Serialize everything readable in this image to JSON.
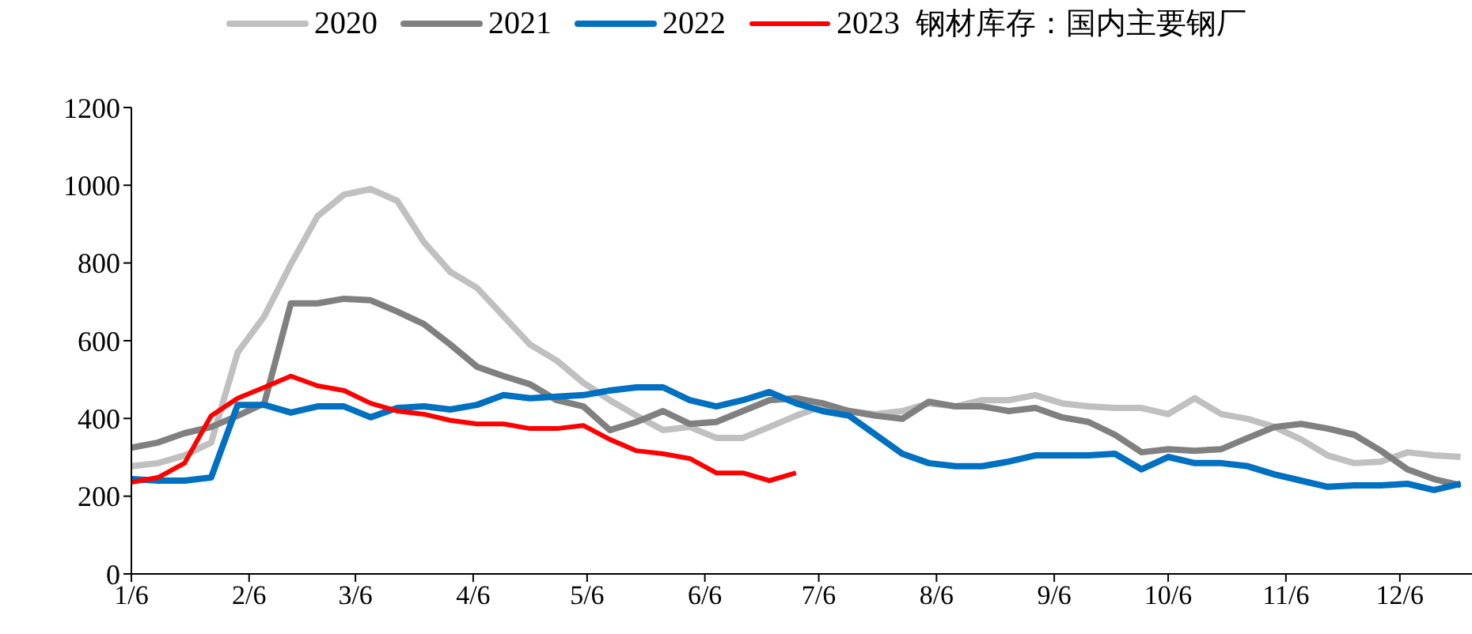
{
  "chart_data": {
    "type": "line",
    "title": "钢材库存：国内主要钢厂",
    "x": [
      "--01-06",
      "--01-13",
      "--01-20",
      "--01-27",
      "--02-03",
      "--02-10",
      "--02-17",
      "--02-24",
      "--03-03",
      "--03-10",
      "--03-17",
      "--03-24",
      "--03-31",
      "--04-07",
      "--04-14",
      "--04-21",
      "--04-28",
      "--05-05",
      "--05-12",
      "--05-19",
      "--05-26",
      "--06-02",
      "--06-09",
      "--06-16",
      "--06-23",
      "--06-30",
      "--07-07",
      "--07-14",
      "--07-21",
      "--07-28",
      "--08-04",
      "--08-11",
      "--08-18",
      "--08-25",
      "--09-01",
      "--09-08",
      "--09-15",
      "--09-22",
      "--09-29",
      "--10-06",
      "--10-13",
      "--10-20",
      "--10-27",
      "--11-03",
      "--11-10",
      "--11-17",
      "--11-24",
      "--12-01",
      "--12-08",
      "--12-15",
      "--12-22"
    ],
    "series": [
      {
        "name": "2020",
        "color": "#c0c0c0",
        "values": [
          277,
          285,
          305,
          338,
          570,
          663,
          797,
          920,
          976,
          990,
          960,
          854,
          777,
          736,
          663,
          590,
          549,
          492,
          447,
          407,
          370,
          378,
          350,
          350,
          378,
          407,
          431,
          419,
          411,
          419,
          439,
          431,
          447,
          447,
          460,
          439,
          431,
          427,
          427,
          411,
          452,
          411,
          399,
          378,
          346,
          305,
          285,
          289,
          313,
          305,
          301
        ]
      },
      {
        "name": "2021",
        "color": "#808080",
        "values": [
          325,
          338,
          362,
          378,
          407,
          439,
          696,
          696,
          708,
          704,
          675,
          643,
          590,
          533,
          509,
          488,
          447,
          431,
          370,
          391,
          419,
          386,
          391,
          419,
          447,
          452,
          439,
          419,
          407,
          399,
          443,
          431,
          431,
          419,
          427,
          403,
          391,
          358,
          313,
          321,
          317,
          321,
          350,
          378,
          386,
          374,
          358,
          317,
          269,
          244,
          228
        ]
      },
      {
        "name": "2022",
        "color": "#0070c0",
        "values": [
          244,
          240,
          240,
          248,
          435,
          435,
          415,
          431,
          431,
          403,
          427,
          431,
          423,
          435,
          460,
          452,
          456,
          460,
          472,
          480,
          480,
          447,
          431,
          447,
          468,
          439,
          419,
          407,
          358,
          309,
          285,
          277,
          277,
          289,
          305,
          305,
          305,
          309,
          269,
          301,
          285,
          285,
          277,
          256,
          240,
          224,
          228,
          228,
          232,
          216,
          232
        ]
      },
      {
        "name": "2023",
        "color": "#ff0000",
        "x": [
          "--01-06",
          "--01-13",
          "--01-20",
          "--01-27",
          "--02-03",
          "--02-10",
          "--02-17",
          "--02-24",
          "--03-03",
          "--03-10",
          "--03-17",
          "--03-24",
          "--03-31",
          "--04-07",
          "--04-14",
          "--04-21",
          "--04-28",
          "--05-05",
          "--05-12",
          "--05-19",
          "--05-26",
          "--06-02",
          "--06-09",
          "--06-16",
          "--06-23",
          "--06-30"
        ],
        "values": [
          236,
          248,
          285,
          407,
          452,
          480,
          509,
          484,
          472,
          439,
          419,
          411,
          395,
          386,
          386,
          374,
          374,
          382,
          346,
          317,
          309,
          297,
          260,
          260,
          240,
          260
        ]
      }
    ],
    "xlim": [
      "--01-06",
      "--12-25"
    ],
    "xticks": [
      {
        "value": "--01-06",
        "label": "1/6"
      },
      {
        "value": "--02-06",
        "label": "2/6"
      },
      {
        "value": "--03-06",
        "label": "3/6"
      },
      {
        "value": "--04-06",
        "label": "4/6"
      },
      {
        "value": "--05-06",
        "label": "5/6"
      },
      {
        "value": "--06-06",
        "label": "6/6"
      },
      {
        "value": "--07-06",
        "label": "7/6"
      },
      {
        "value": "--08-06",
        "label": "8/6"
      },
      {
        "value": "--09-06",
        "label": "9/6"
      },
      {
        "value": "--10-06",
        "label": "10/6"
      },
      {
        "value": "--11-06",
        "label": "11/6"
      },
      {
        "value": "--12-06",
        "label": "12/6"
      }
    ],
    "ylim": [
      0,
      1200
    ],
    "yticks": [
      0,
      200,
      400,
      600,
      800,
      1000,
      1200
    ],
    "legend": "top",
    "grid": false,
    "marker": "none",
    "line_style": "solid"
  }
}
